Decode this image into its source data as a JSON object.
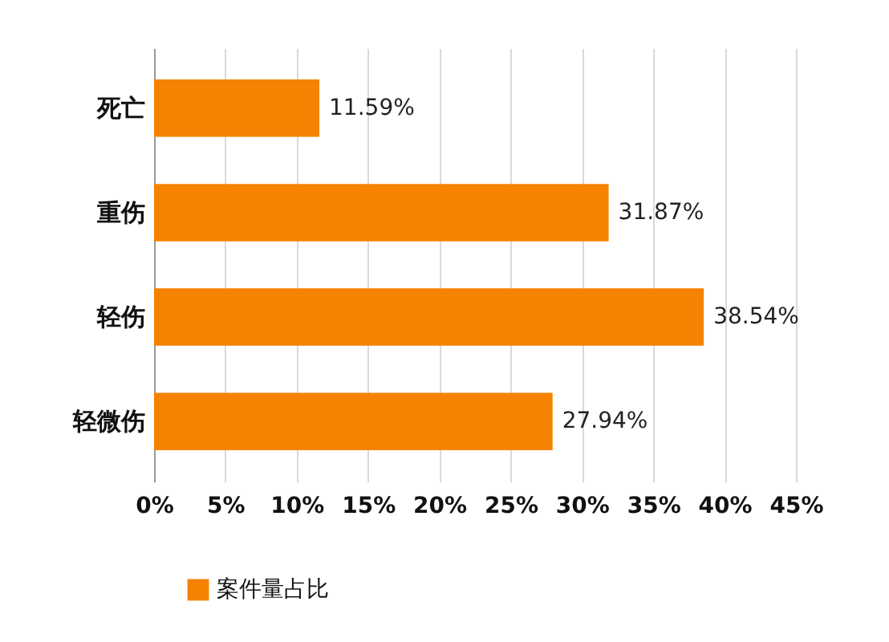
{
  "chart_data": {
    "type": "bar",
    "orientation": "horizontal",
    "categories": [
      "死亡",
      "重伤",
      "轻伤",
      "轻微伤"
    ],
    "series": [
      {
        "name": "案件量占比",
        "color": "#f58200",
        "values": [
          11.59,
          31.87,
          38.54,
          27.94
        ],
        "value_labels": [
          "11.59%",
          "31.87%",
          "38.54%",
          "27.94%"
        ]
      }
    ],
    "xlim": [
      0,
      45
    ],
    "xticks": [
      {
        "value": 0,
        "label": "0%"
      },
      {
        "value": 5,
        "label": "5%"
      },
      {
        "value": 10,
        "label": "10%"
      },
      {
        "value": 15,
        "label": "15%"
      },
      {
        "value": 20,
        "label": "20%"
      },
      {
        "value": 25,
        "label": "25%"
      },
      {
        "value": 30,
        "label": "30%"
      },
      {
        "value": 35,
        "label": "35%"
      },
      {
        "value": 40,
        "label": "40%"
      },
      {
        "value": 45,
        "label": "45%"
      }
    ],
    "grid": "x",
    "legend": "bottom"
  }
}
